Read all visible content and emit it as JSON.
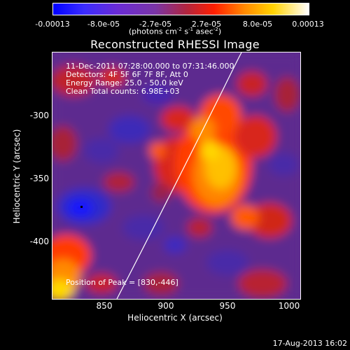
{
  "colorbar": {
    "ticks": [
      "-0.00013",
      "-8.0e-05",
      "-2.7e-05",
      "2.7e-05",
      "8.0e-05",
      "0.00013"
    ],
    "units": {
      "pre": "(photons cm",
      "exp1": "-2",
      "mid1": " s",
      "exp2": "-1",
      "mid2": " asec",
      "exp3": "-2",
      "post": ")"
    }
  },
  "title": "Reconstructed RHESSI Image",
  "info": {
    "time": "11-Dec-2011 07:28:00.000 to 07:31:46.000",
    "detectors": "Detectors: 4F 5F 6F 7F 8F, Att 0",
    "energy": "Energy Range: 25.0 - 50.0 keV",
    "method": "Clean     Total counts: 6.98E+03",
    "peak": "Position of Peak = [830,-446]"
  },
  "axes": {
    "xlabel": "Heliocentric X (arcsec)",
    "ylabel": "Heliocentric Y (arcsec)",
    "xticks": [
      "850",
      "900",
      "950",
      "1000"
    ],
    "yticks": [
      "-300",
      "-350",
      "-400"
    ]
  },
  "footer": {
    "date": "17-Aug-2013 16:02"
  },
  "colors": {
    "limb": "#ffffff",
    "frame": "#ffffff",
    "background": "#000000"
  }
}
